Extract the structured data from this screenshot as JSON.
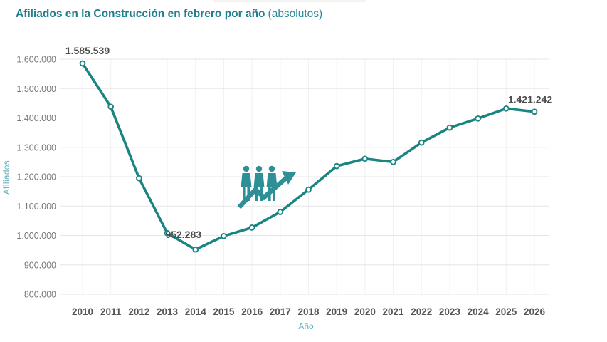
{
  "header": {
    "title": "Afiliados en la Construcción en febrero por año",
    "subtitle": "(absolutos)"
  },
  "chart_data": {
    "type": "line",
    "title": "Afiliados en la Construcción en febrero por año (absolutos)",
    "xlabel": "Año",
    "ylabel": "Afiliados",
    "x": [
      2010,
      2011,
      2012,
      2013,
      2014,
      2015,
      2016,
      2017,
      2018,
      2019,
      2020,
      2021,
      2022,
      2023,
      2024,
      2025,
      2026
    ],
    "x_ticks": [
      "2010",
      "2011",
      "2012",
      "2013",
      "2014",
      "2015",
      "2016",
      "2017",
      "2018",
      "2019",
      "2020",
      "2021",
      "2022",
      "2023",
      "2024",
      "2025",
      "2026"
    ],
    "values": [
      1585539,
      1438000,
      1195000,
      1008000,
      952283,
      998000,
      1027000,
      1080000,
      1156000,
      1236000,
      1261000,
      1250000,
      1316000,
      1367000,
      1398000,
      1432000,
      1421242
    ],
    "point_labels": [
      {
        "x": 2010,
        "label": "1.585.539"
      },
      {
        "x": 2014,
        "label": "952.283"
      },
      {
        "x": 2026,
        "label": "1.421.242"
      }
    ],
    "y_ticks": [
      {
        "value": 1600000,
        "label": "1.600.000"
      },
      {
        "value": 1500000,
        "label": "1.500.000"
      },
      {
        "value": 1400000,
        "label": "1.400.000"
      },
      {
        "value": 1300000,
        "label": "1.300.000"
      },
      {
        "value": 1200000,
        "label": "1.200.000"
      },
      {
        "value": 1100000,
        "label": "1.100.000"
      },
      {
        "value": 1000000,
        "label": "1.000.000"
      },
      {
        "value": 900000,
        "label": "900.000"
      },
      {
        "value": 800000,
        "label": "800.000"
      }
    ],
    "ylim": [
      800000,
      1600000
    ],
    "grid": "horizontal-and-faint-vertical",
    "legend": "none",
    "marker": "open-circle",
    "icon": "people-growth-icon",
    "colors": {
      "background": "#ffffff",
      "line": "#1a8480",
      "marker_fill": "#ffffff",
      "title": "#1e7f8e",
      "subtitle": "#2c8a99",
      "axis_title": "#5fadbe",
      "x_tick": "#555555",
      "y_tick": "#767676",
      "data_label": "#4d4d4d",
      "gridline_h": "#e6e6e6",
      "gridline_v": "#f1f1f1",
      "icon": "#2e8f96"
    }
  }
}
